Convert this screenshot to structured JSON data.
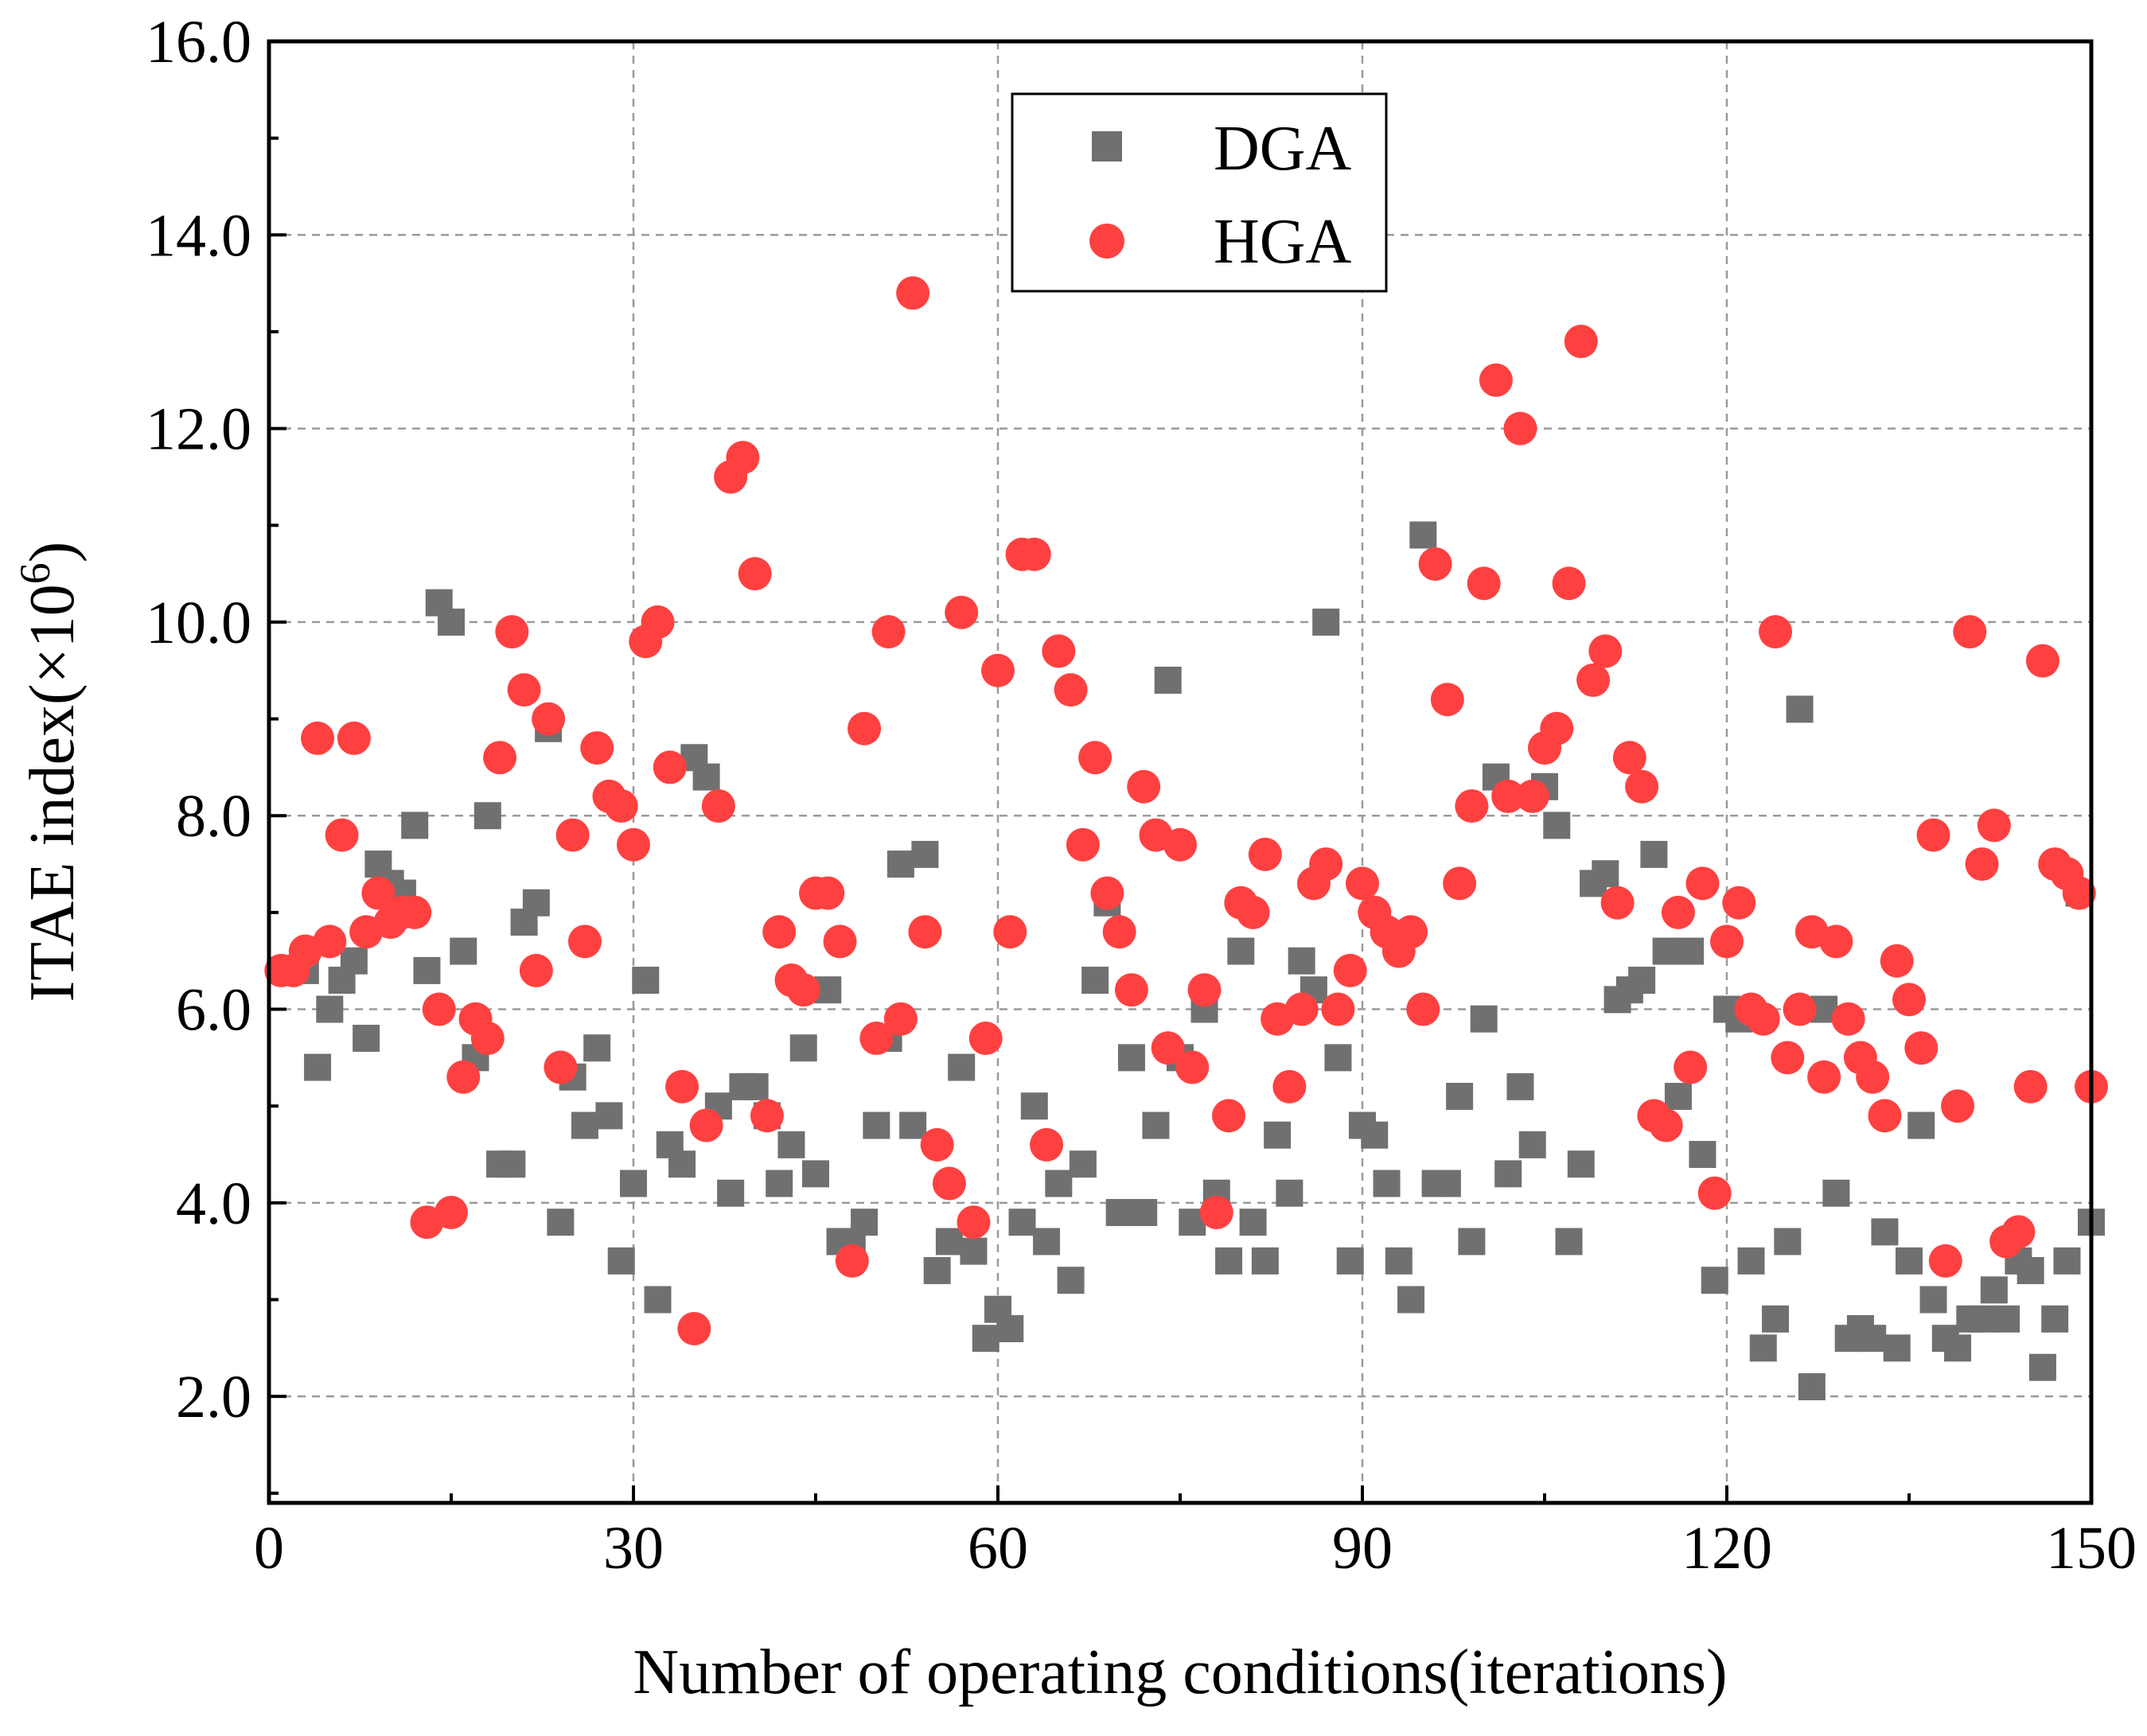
{
  "chart_data": {
    "type": "scatter",
    "title": "",
    "xlabel": "Number of operating conditions(iterations)",
    "ylabel_main": "ITAE index(×10",
    "ylabel_exp": "6",
    "ylabel_close": ")",
    "xlim": [
      0,
      150
    ],
    "ylim": [
      0.9,
      16.0
    ],
    "xticks": [
      0,
      30,
      60,
      90,
      120,
      150
    ],
    "xtick_labels": [
      "0",
      "30",
      "60",
      "90",
      "120",
      "150"
    ],
    "yticks": [
      2.0,
      4.0,
      6.0,
      8.0,
      10.0,
      12.0,
      14.0,
      16.0
    ],
    "ytick_labels": [
      "2.0",
      "4.0",
      "6.0",
      "8.0",
      "10.0",
      "12.0",
      "14.0",
      "16.0"
    ],
    "grid": true,
    "legend_position": "top-center",
    "series": [
      {
        "name": "DGA",
        "marker": "square",
        "color": "#707070",
        "x": [
          1,
          2,
          3,
          4,
          5,
          6,
          7,
          8,
          9,
          10,
          11,
          12,
          13,
          14,
          15,
          16,
          17,
          18,
          19,
          20,
          21,
          22,
          23,
          24,
          25,
          26,
          27,
          28,
          29,
          30,
          31,
          32,
          33,
          34,
          35,
          36,
          37,
          38,
          39,
          40,
          41,
          42,
          43,
          44,
          45,
          46,
          47,
          48,
          49,
          50,
          51,
          52,
          53,
          54,
          55,
          56,
          57,
          58,
          59,
          60,
          61,
          62,
          63,
          64,
          65,
          66,
          67,
          68,
          69,
          70,
          71,
          72,
          73,
          74,
          75,
          76,
          77,
          78,
          79,
          80,
          81,
          82,
          83,
          84,
          85,
          86,
          87,
          88,
          89,
          90,
          91,
          92,
          93,
          94,
          95,
          96,
          97,
          98,
          99,
          100,
          101,
          102,
          103,
          104,
          105,
          106,
          107,
          108,
          109,
          110,
          111,
          112,
          113,
          114,
          115,
          116,
          117,
          118,
          119,
          120,
          121,
          122,
          123,
          124,
          125,
          126,
          127,
          128,
          129,
          130,
          131,
          132,
          133,
          134,
          135,
          136,
          137,
          138,
          139,
          140,
          141,
          142,
          143,
          144,
          145,
          146,
          147,
          148,
          149,
          150
        ],
        "y": [
          6.4,
          6.4,
          6.4,
          5.4,
          6.0,
          6.3,
          6.5,
          5.7,
          7.5,
          7.3,
          7.2,
          7.9,
          6.4,
          10.2,
          10.0,
          6.6,
          5.5,
          8.0,
          4.4,
          4.4,
          6.9,
          7.1,
          8.9,
          3.8,
          5.3,
          4.8,
          5.6,
          4.9,
          3.4,
          4.2,
          6.3,
          3.0,
          4.6,
          4.4,
          8.6,
          8.4,
          5.0,
          4.1,
          5.2,
          5.2,
          4.9,
          4.2,
          4.6,
          5.6,
          4.3,
          6.2,
          3.6,
          3.6,
          3.8,
          4.8,
          5.7,
          7.5,
          4.8,
          7.6,
          3.3,
          3.6,
          5.4,
          3.5,
          2.6,
          2.9,
          2.7,
          3.8,
          5.0,
          3.6,
          4.2,
          3.2,
          4.4,
          6.3,
          7.1,
          3.9,
          5.5,
          3.9,
          4.8,
          9.4,
          5.5,
          3.8,
          6.0,
          4.1,
          3.4,
          6.6,
          3.8,
          3.4,
          4.7,
          4.1,
          6.5,
          6.2,
          10.0,
          5.5,
          3.4,
          4.8,
          4.7,
          4.2,
          3.4,
          3.0,
          10.9,
          4.2,
          4.2,
          5.1,
          3.6,
          5.9,
          8.4,
          4.3,
          5.2,
          4.6,
          8.3,
          7.9,
          3.6,
          4.4,
          7.3,
          7.4,
          6.1,
          6.2,
          6.3,
          7.6,
          6.6,
          5.1,
          6.6,
          4.5,
          3.2,
          6.0,
          5.9,
          3.4,
          2.5,
          2.8,
          3.6,
          9.1,
          2.1,
          6.0,
          4.1,
          2.6,
          2.7,
          2.6,
          3.7,
          2.5,
          3.4,
          4.8,
          3.0,
          2.6,
          2.5,
          2.8,
          2.8,
          3.1,
          2.8,
          3.4,
          3.3,
          2.3,
          2.8,
          3.4,
          7.2,
          3.8
        ]
      },
      {
        "name": "HGA",
        "marker": "circle",
        "color": "#ff4040",
        "x": [
          1,
          2,
          3,
          4,
          5,
          6,
          7,
          8,
          9,
          10,
          11,
          12,
          13,
          14,
          15,
          16,
          17,
          18,
          19,
          20,
          21,
          22,
          23,
          24,
          25,
          26,
          27,
          28,
          29,
          30,
          31,
          32,
          33,
          34,
          35,
          36,
          37,
          38,
          39,
          40,
          41,
          42,
          43,
          44,
          45,
          46,
          47,
          48,
          49,
          50,
          51,
          52,
          53,
          54,
          55,
          56,
          57,
          58,
          59,
          60,
          61,
          62,
          63,
          64,
          65,
          66,
          67,
          68,
          69,
          70,
          71,
          72,
          73,
          74,
          75,
          76,
          77,
          78,
          79,
          80,
          81,
          82,
          83,
          84,
          85,
          86,
          87,
          88,
          89,
          90,
          91,
          92,
          93,
          94,
          95,
          96,
          97,
          98,
          99,
          100,
          101,
          102,
          103,
          104,
          105,
          106,
          107,
          108,
          109,
          110,
          111,
          112,
          113,
          114,
          115,
          116,
          117,
          118,
          119,
          120,
          121,
          122,
          123,
          124,
          125,
          126,
          127,
          128,
          129,
          130,
          131,
          132,
          133,
          134,
          135,
          136,
          137,
          138,
          139,
          140,
          141,
          142,
          143,
          144,
          145,
          146,
          147,
          148,
          149,
          150
        ],
        "y": [
          6.4,
          6.4,
          6.6,
          8.8,
          6.7,
          7.8,
          8.8,
          6.8,
          7.2,
          6.9,
          7.0,
          7.0,
          3.8,
          6.0,
          3.9,
          5.3,
          5.9,
          5.7,
          8.6,
          9.9,
          9.3,
          6.4,
          9.0,
          5.4,
          7.8,
          6.7,
          8.7,
          8.2,
          8.1,
          7.7,
          9.8,
          10.0,
          8.5,
          5.2,
          2.7,
          4.8,
          8.1,
          11.5,
          11.7,
          10.5,
          4.9,
          6.8,
          6.3,
          6.2,
          7.2,
          7.2,
          6.7,
          3.4,
          8.9,
          5.7,
          9.9,
          5.9,
          13.4,
          6.8,
          4.6,
          4.2,
          10.1,
          3.8,
          5.7,
          9.5,
          6.8,
          10.7,
          10.7,
          4.6,
          9.7,
          9.3,
          7.7,
          8.6,
          7.2,
          6.8,
          6.2,
          8.3,
          7.8,
          5.6,
          7.7,
          5.4,
          6.2,
          3.9,
          4.9,
          7.1,
          7.0,
          7.6,
          5.9,
          5.2,
          6.0,
          7.3,
          7.5,
          6.0,
          6.4,
          7.3,
          7.0,
          6.8,
          6.6,
          6.8,
          6.0,
          10.6,
          9.2,
          7.3,
          8.1,
          10.4,
          12.5,
          8.2,
          12.0,
          8.2,
          8.7,
          8.9,
          10.4,
          12.9,
          9.4,
          9.7,
          7.1,
          8.6,
          8.3,
          4.9,
          4.8,
          7.0,
          5.4,
          7.3,
          4.1,
          6.7,
          7.1,
          6.0,
          5.9,
          9.9,
          5.5,
          6.0,
          6.8,
          5.3,
          6.7,
          5.9,
          5.5,
          5.3,
          4.9,
          6.5,
          6.1,
          5.6,
          7.8,
          3.4,
          5.0,
          9.9,
          7.5,
          7.9,
          3.6,
          3.7,
          5.2,
          9.6,
          7.5,
          7.4,
          7.2,
          5.2
        ]
      }
    ]
  }
}
